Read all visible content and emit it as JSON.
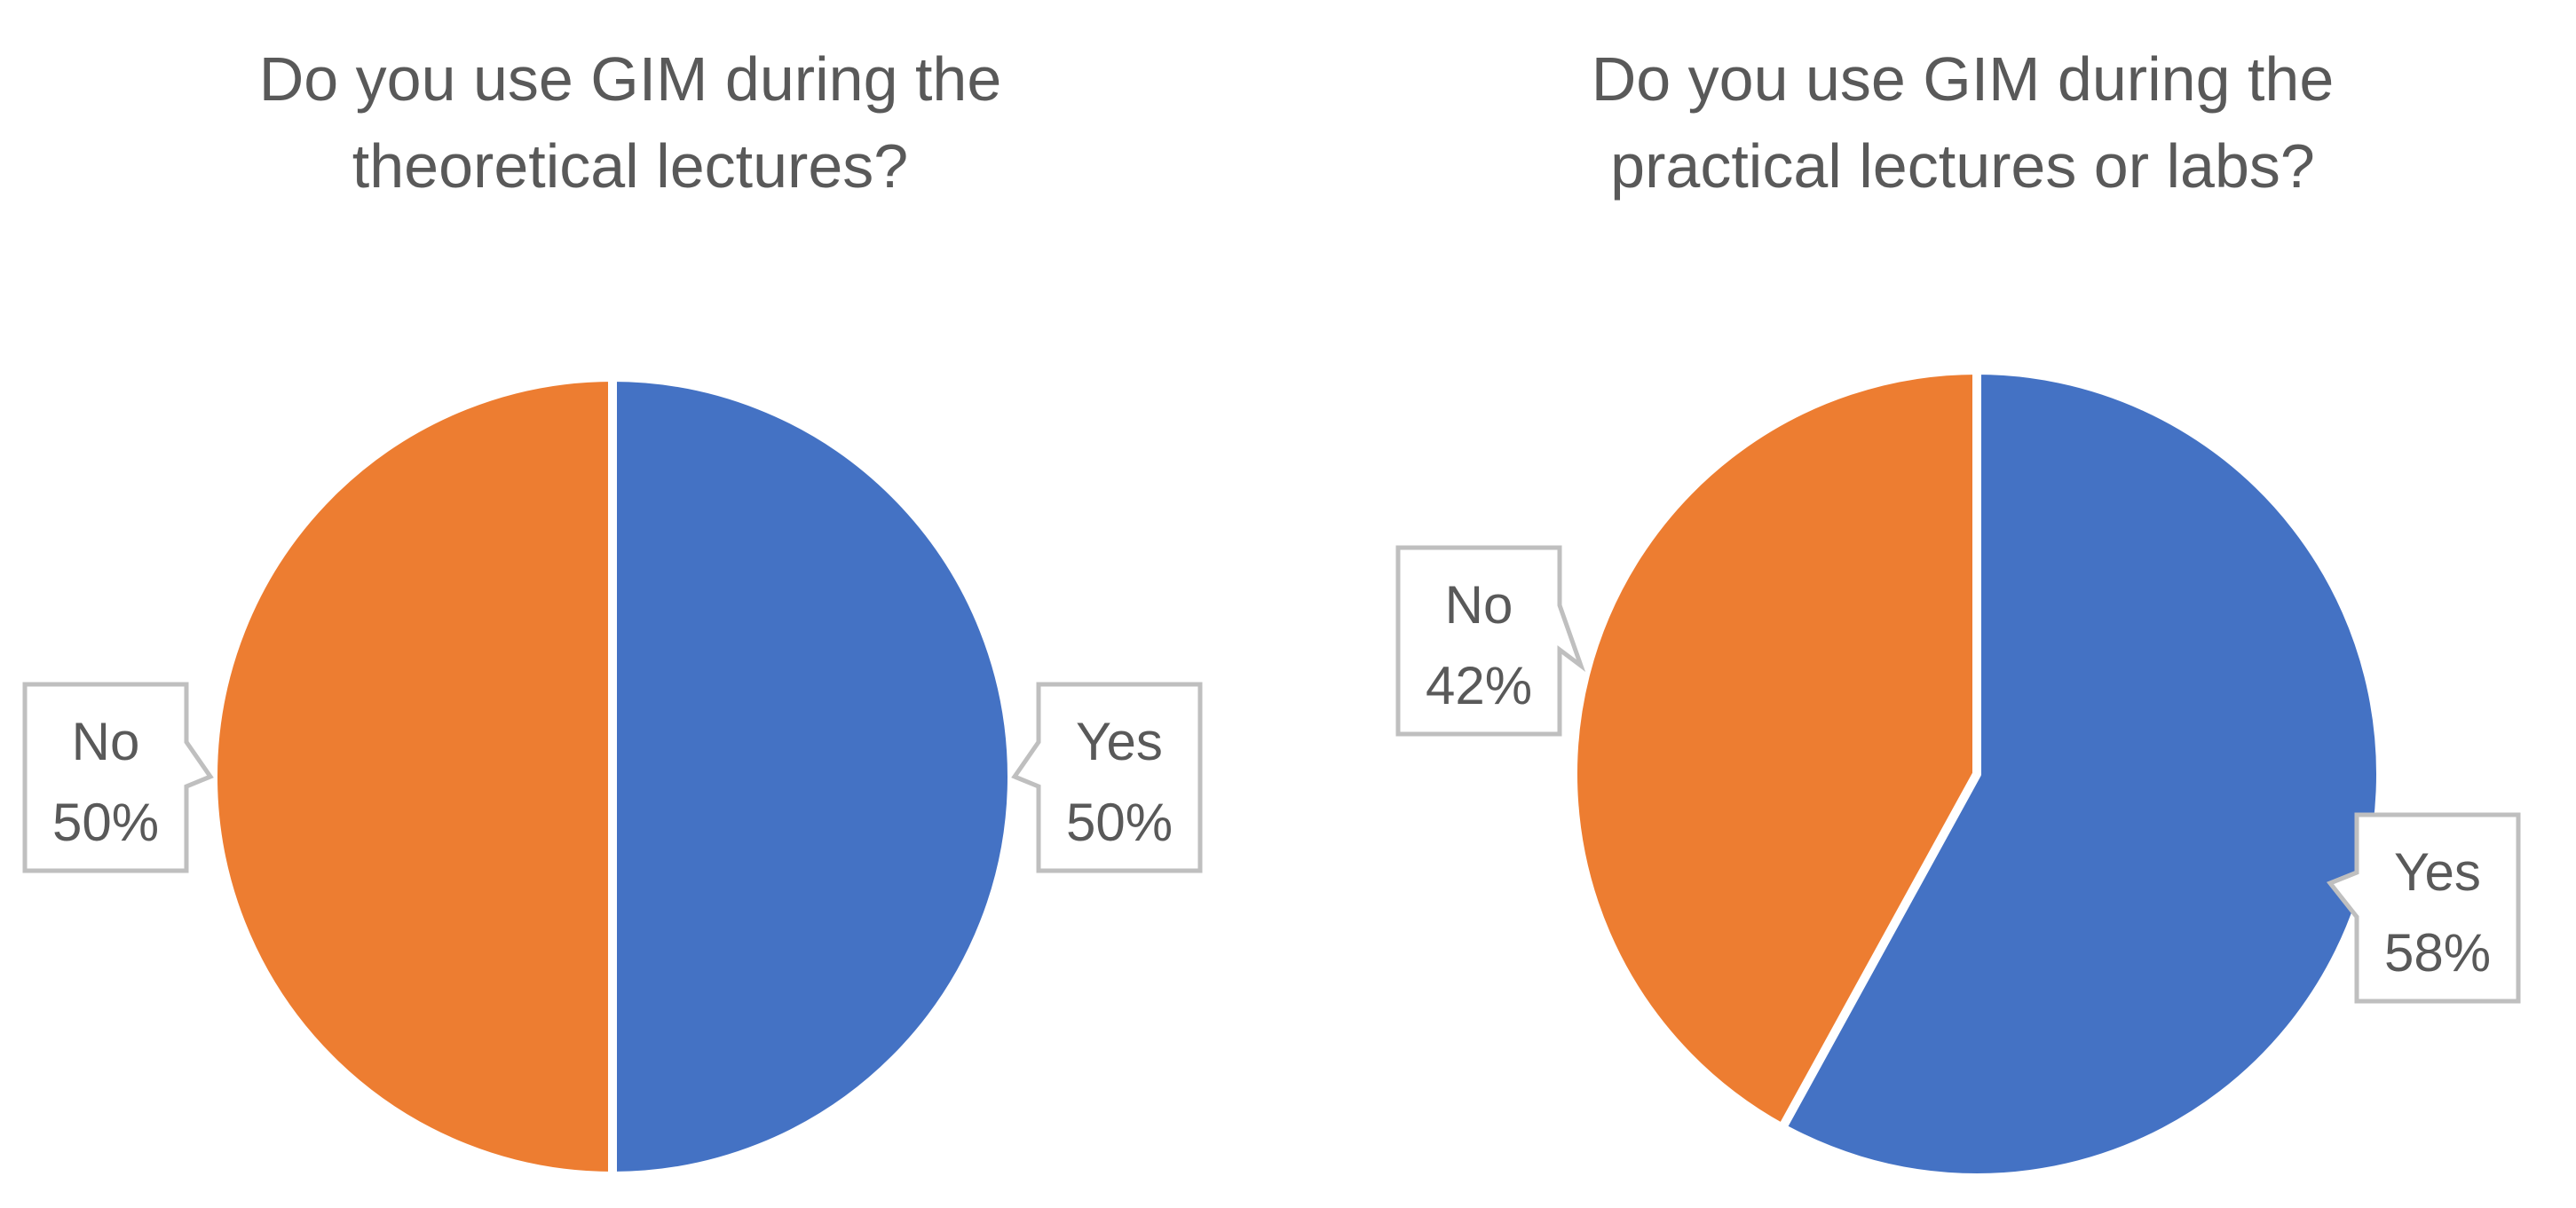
{
  "colors": {
    "yes": "#4472C4",
    "no": "#ED7D31",
    "text": "#595959",
    "callout_border": "#BFBFBF",
    "separator": "#FFFFFF"
  },
  "chart_data": [
    {
      "type": "pie",
      "title_lines": [
        "Do you use GIM during the",
        "theoretical lectures?"
      ],
      "start_angle_deg": 0,
      "direction": "clockwise",
      "slices": [
        {
          "label": "Yes",
          "value": 50,
          "value_label": "50%",
          "color": "#4472C4"
        },
        {
          "label": "No",
          "value": 50,
          "value_label": "50%",
          "color": "#ED7D31"
        }
      ],
      "legend": "none",
      "data_labels": "callouts"
    },
    {
      "type": "pie",
      "title_lines": [
        "Do you use GIM during the",
        "practical lectures or labs?"
      ],
      "start_angle_deg": 0,
      "direction": "clockwise",
      "slices": [
        {
          "label": "Yes",
          "value": 58,
          "value_label": "58%",
          "color": "#4472C4"
        },
        {
          "label": "No",
          "value": 42,
          "value_label": "42%",
          "color": "#ED7D31"
        }
      ],
      "legend": "none",
      "data_labels": "callouts"
    }
  ]
}
